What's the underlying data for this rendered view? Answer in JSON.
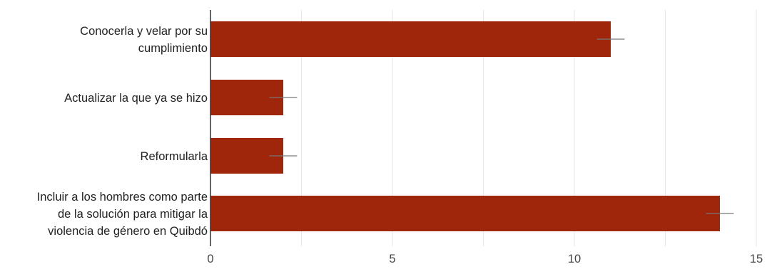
{
  "chart_data": {
    "type": "bar",
    "orientation": "horizontal",
    "categories": [
      [
        "Conocerla y velar por su",
        "cumplimiento"
      ],
      [
        "Actualizar la que ya se hizo"
      ],
      [
        "Reformularla"
      ],
      [
        "Incluir a los hombres como parte",
        "de la solución para mitigar la",
        "violencia de género en Quibdó"
      ]
    ],
    "values": [
      11,
      2,
      2,
      14
    ],
    "error_bars": [
      0.38,
      0.38,
      0.38,
      0.38
    ],
    "xlim": [
      0,
      15
    ],
    "xticks": [
      0,
      5,
      10,
      15
    ],
    "minor_grid": [
      2.5,
      7.5,
      12.5
    ],
    "grid": true,
    "bar_color": "#a0260b",
    "error_color": "#777777",
    "grid_color": "#e6e6e6",
    "axis_color": "#333333",
    "label_color": "#222222"
  }
}
